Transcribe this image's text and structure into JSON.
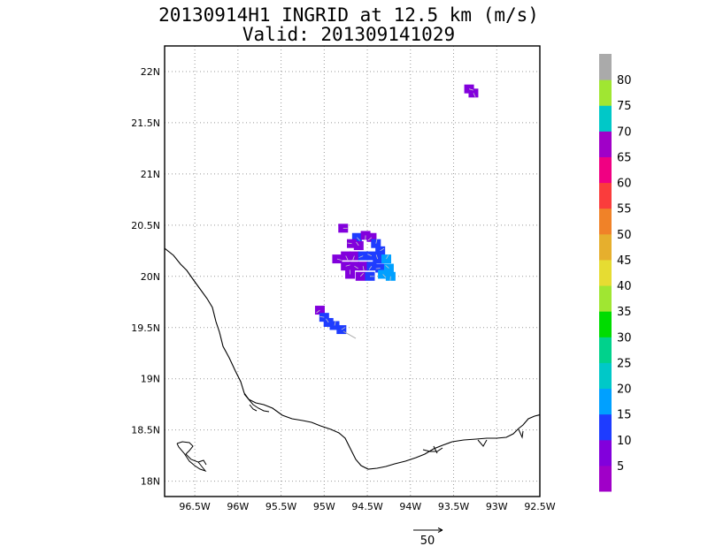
{
  "title_line1": "20130914H1 INGRID at 12.5 km (m/s)",
  "title_line2": "Valid: 201309141029",
  "map": {
    "lon_range": [
      -96.85,
      -92.5
    ],
    "lat_range": [
      17.85,
      22.25
    ],
    "lon_ticks": [
      {
        "value": -96.5,
        "label": "96.5W"
      },
      {
        "value": -96.0,
        "label": "96W"
      },
      {
        "value": -95.5,
        "label": "95.5W"
      },
      {
        "value": -95.0,
        "label": "95W"
      },
      {
        "value": -94.5,
        "label": "94.5W"
      },
      {
        "value": -94.0,
        "label": "94W"
      },
      {
        "value": -93.5,
        "label": "93.5W"
      },
      {
        "value": -93.0,
        "label": "93W"
      },
      {
        "value": -92.5,
        "label": "92.5W"
      }
    ],
    "lat_ticks": [
      {
        "value": 18.0,
        "label": "18N"
      },
      {
        "value": 18.5,
        "label": "18.5N"
      },
      {
        "value": 19.0,
        "label": "19N"
      },
      {
        "value": 19.5,
        "label": "19.5N"
      },
      {
        "value": 20.0,
        "label": "20N"
      },
      {
        "value": 20.5,
        "label": "20.5N"
      },
      {
        "value": 21.0,
        "label": "21N"
      },
      {
        "value": 21.5,
        "label": "21.5N"
      },
      {
        "value": 22.0,
        "label": "22N"
      }
    ],
    "grid": "dotted"
  },
  "colorbar": {
    "colors": [
      "#a000c8",
      "#8200dc",
      "#1e3cff",
      "#00a0ff",
      "#00c8c8",
      "#00d28c",
      "#00dc00",
      "#a0e632",
      "#e6dc32",
      "#e6af2d",
      "#f08228",
      "#fa3c3c",
      "#f00082",
      "#a000c8",
      "#00c8c8",
      "#a0e632",
      "#aaaaaa"
    ],
    "labels": [
      "5",
      "10",
      "15",
      "20",
      "25",
      "30",
      "35",
      "40",
      "45",
      "50",
      "55",
      "60",
      "65",
      "70",
      "75",
      "80"
    ]
  },
  "reference_vector": {
    "label": "50"
  },
  "wind_data": [
    {
      "lon": -94.78,
      "lat": 20.47,
      "speed": 8
    },
    {
      "lon": -94.62,
      "lat": 20.38,
      "speed": 12
    },
    {
      "lon": -94.52,
      "lat": 20.4,
      "speed": 9
    },
    {
      "lon": -94.45,
      "lat": 20.38,
      "speed": 7
    },
    {
      "lon": -94.68,
      "lat": 20.32,
      "speed": 8
    },
    {
      "lon": -94.6,
      "lat": 20.3,
      "speed": 9
    },
    {
      "lon": -94.4,
      "lat": 20.32,
      "speed": 11
    },
    {
      "lon": -94.35,
      "lat": 20.25,
      "speed": 13
    },
    {
      "lon": -94.85,
      "lat": 20.17,
      "speed": 7
    },
    {
      "lon": -94.75,
      "lat": 20.2,
      "speed": 8
    },
    {
      "lon": -94.65,
      "lat": 20.2,
      "speed": 9
    },
    {
      "lon": -94.55,
      "lat": 20.2,
      "speed": 10
    },
    {
      "lon": -94.45,
      "lat": 20.2,
      "speed": 12
    },
    {
      "lon": -94.38,
      "lat": 20.17,
      "speed": 14
    },
    {
      "lon": -94.28,
      "lat": 20.17,
      "speed": 16
    },
    {
      "lon": -94.75,
      "lat": 20.1,
      "speed": 8
    },
    {
      "lon": -94.65,
      "lat": 20.1,
      "speed": 9
    },
    {
      "lon": -94.55,
      "lat": 20.1,
      "speed": 9
    },
    {
      "lon": -94.45,
      "lat": 20.1,
      "speed": 11
    },
    {
      "lon": -94.35,
      "lat": 20.08,
      "speed": 13
    },
    {
      "lon": -94.25,
      "lat": 20.08,
      "speed": 17
    },
    {
      "lon": -94.7,
      "lat": 20.02,
      "speed": 8
    },
    {
      "lon": -94.58,
      "lat": 20.0,
      "speed": 9
    },
    {
      "lon": -94.47,
      "lat": 20.0,
      "speed": 10
    },
    {
      "lon": -94.32,
      "lat": 20.02,
      "speed": 16
    },
    {
      "lon": -94.23,
      "lat": 20.0,
      "speed": 19
    },
    {
      "lon": -95.05,
      "lat": 19.67,
      "speed": 7
    },
    {
      "lon": -95.0,
      "lat": 19.6,
      "speed": 11
    },
    {
      "lon": -94.95,
      "lat": 19.55,
      "speed": 12
    },
    {
      "lon": -94.88,
      "lat": 19.52,
      "speed": 13
    },
    {
      "lon": -94.8,
      "lat": 19.48,
      "speed": 12
    },
    {
      "lon": -93.32,
      "lat": 21.83,
      "speed": 8
    },
    {
      "lon": -93.27,
      "lat": 21.79,
      "speed": 8
    }
  ]
}
